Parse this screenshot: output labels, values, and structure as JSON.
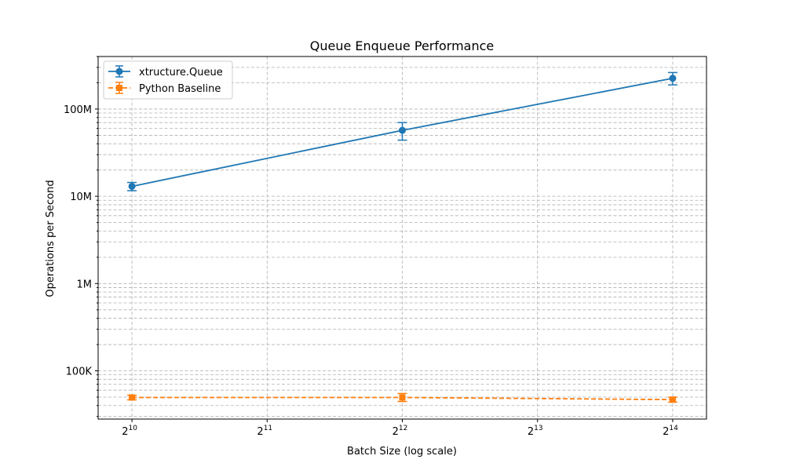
{
  "chart_data": {
    "type": "line",
    "title": "Queue Enqueue Performance",
    "xlabel": "Batch Size (log scale)",
    "ylabel": "Operations per Second",
    "xscale": "log2",
    "yscale": "log10",
    "x": [
      1024,
      4096,
      16384
    ],
    "x_ticks": [
      {
        "value": 1024,
        "base": "2",
        "exp": "10"
      },
      {
        "value": 2048,
        "base": "2",
        "exp": "11"
      },
      {
        "value": 4096,
        "base": "2",
        "exp": "12"
      },
      {
        "value": 8192,
        "base": "2",
        "exp": "13"
      },
      {
        "value": 16384,
        "base": "2",
        "exp": "14"
      }
    ],
    "y_ticks": [
      {
        "value": 100000,
        "label": "100K"
      },
      {
        "value": 1000000,
        "label": "1M"
      },
      {
        "value": 10000000,
        "label": "10M"
      },
      {
        "value": 100000000,
        "label": "100M"
      }
    ],
    "xlim": [
      861,
      19484
    ],
    "ylim": [
      28000,
      400000000
    ],
    "grid": true,
    "legend_position": "top-left",
    "series": [
      {
        "name": "xtructure.Queue",
        "color": "#1f77b4",
        "marker": "circle",
        "linestyle": "solid",
        "values": [
          13000000,
          57000000,
          225000000
        ],
        "errors_low": [
          11600000,
          44000000,
          189000000
        ],
        "errors_high": [
          14400000,
          70000000,
          262000000
        ]
      },
      {
        "name": "Python Baseline",
        "color": "#ff7f0e",
        "marker": "square",
        "linestyle": "dashed",
        "values": [
          49500,
          49500,
          46800
        ],
        "errors_low": [
          46500,
          44500,
          43800
        ],
        "errors_high": [
          52500,
          55000,
          49800
        ]
      }
    ]
  }
}
